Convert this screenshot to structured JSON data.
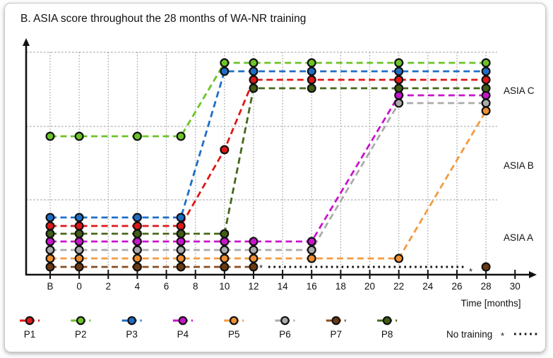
{
  "chart_data": {
    "type": "line",
    "title": "B. ASIA score throughout the 28 months of WA-NR training",
    "xlabel": "Time [months]",
    "x_ticks": [
      "B",
      "0",
      "2",
      "4",
      "6",
      "8",
      "10",
      "12",
      "14",
      "16",
      "18",
      "20",
      "22",
      "24",
      "26",
      "28",
      "30"
    ],
    "y_bands": [
      "ASIA A",
      "ASIA B",
      "ASIA C"
    ],
    "grid": true,
    "legend_position": "bottom",
    "series": [
      {
        "name": "P1",
        "color": "#e01717",
        "fill": "#e01717",
        "points": [
          [
            "B",
            "A"
          ],
          [
            0,
            "A"
          ],
          [
            4,
            "A"
          ],
          [
            7,
            "A"
          ],
          [
            10,
            "B"
          ],
          [
            12,
            "C"
          ],
          [
            16,
            "C"
          ],
          [
            22,
            "C"
          ],
          [
            28,
            "C"
          ]
        ]
      },
      {
        "name": "P2",
        "color": "#6cc327",
        "fill": "#6cc327",
        "points": [
          [
            "B",
            "B"
          ],
          [
            0,
            "B"
          ],
          [
            4,
            "B"
          ],
          [
            7,
            "B"
          ],
          [
            10,
            "C"
          ],
          [
            12,
            "C"
          ],
          [
            16,
            "C"
          ],
          [
            22,
            "C"
          ],
          [
            28,
            "C"
          ]
        ]
      },
      {
        "name": "P3",
        "color": "#1f6ec6",
        "fill": "#1f6ec6",
        "points": [
          [
            "B",
            "A"
          ],
          [
            0,
            "A"
          ],
          [
            4,
            "A"
          ],
          [
            7,
            "A"
          ],
          [
            10,
            "C"
          ],
          [
            12,
            "C"
          ],
          [
            16,
            "C"
          ],
          [
            22,
            "C"
          ],
          [
            28,
            "C"
          ]
        ]
      },
      {
        "name": "P4",
        "color": "#c913cd",
        "fill": "#c913cd",
        "points": [
          [
            "B",
            "A"
          ],
          [
            0,
            "A"
          ],
          [
            4,
            "A"
          ],
          [
            7,
            "A"
          ],
          [
            10,
            "A"
          ],
          [
            12,
            "A"
          ],
          [
            16,
            "A"
          ],
          [
            22,
            "C"
          ],
          [
            28,
            "C"
          ]
        ]
      },
      {
        "name": "P5",
        "color": "#f49b3f",
        "fill": "#ef8f2f",
        "points": [
          [
            "B",
            "A"
          ],
          [
            0,
            "A"
          ],
          [
            4,
            "A"
          ],
          [
            7,
            "A"
          ],
          [
            10,
            "A"
          ],
          [
            12,
            "A"
          ],
          [
            16,
            "A"
          ],
          [
            22,
            "A"
          ],
          [
            28,
            "C"
          ]
        ]
      },
      {
        "name": "P6",
        "color": "#ababab",
        "fill": "#ababab",
        "points": [
          [
            "B",
            "A"
          ],
          [
            0,
            "A"
          ],
          [
            4,
            "A"
          ],
          [
            7,
            "A"
          ],
          [
            10,
            "A"
          ],
          [
            12,
            "A"
          ],
          [
            16,
            "A"
          ],
          [
            22,
            "C"
          ],
          [
            28,
            "C"
          ]
        ]
      },
      {
        "name": "P7",
        "color": "#8a4c1e",
        "fill": "#6b3a12",
        "points": [
          [
            "B",
            "A"
          ],
          [
            0,
            "A"
          ],
          [
            4,
            "A"
          ],
          [
            7,
            "A"
          ],
          [
            10,
            "A"
          ],
          [
            12,
            "A"
          ],
          [
            28,
            "A"
          ]
        ],
        "gap_after": 12
      },
      {
        "name": "P8",
        "color": "#45671a",
        "fill": "#415e14",
        "points": [
          [
            "B",
            "A"
          ],
          [
            0,
            "A"
          ],
          [
            4,
            "A"
          ],
          [
            7,
            "A"
          ],
          [
            10,
            "A"
          ],
          [
            12,
            "C"
          ],
          [
            16,
            "C"
          ],
          [
            22,
            "C"
          ],
          [
            28,
            "C"
          ]
        ]
      }
    ],
    "no_training": {
      "label": "No training",
      "marker": "*"
    },
    "legend": [
      "P1",
      "P2",
      "P3",
      "P4",
      "P5",
      "P6",
      "P7",
      "P8"
    ]
  }
}
